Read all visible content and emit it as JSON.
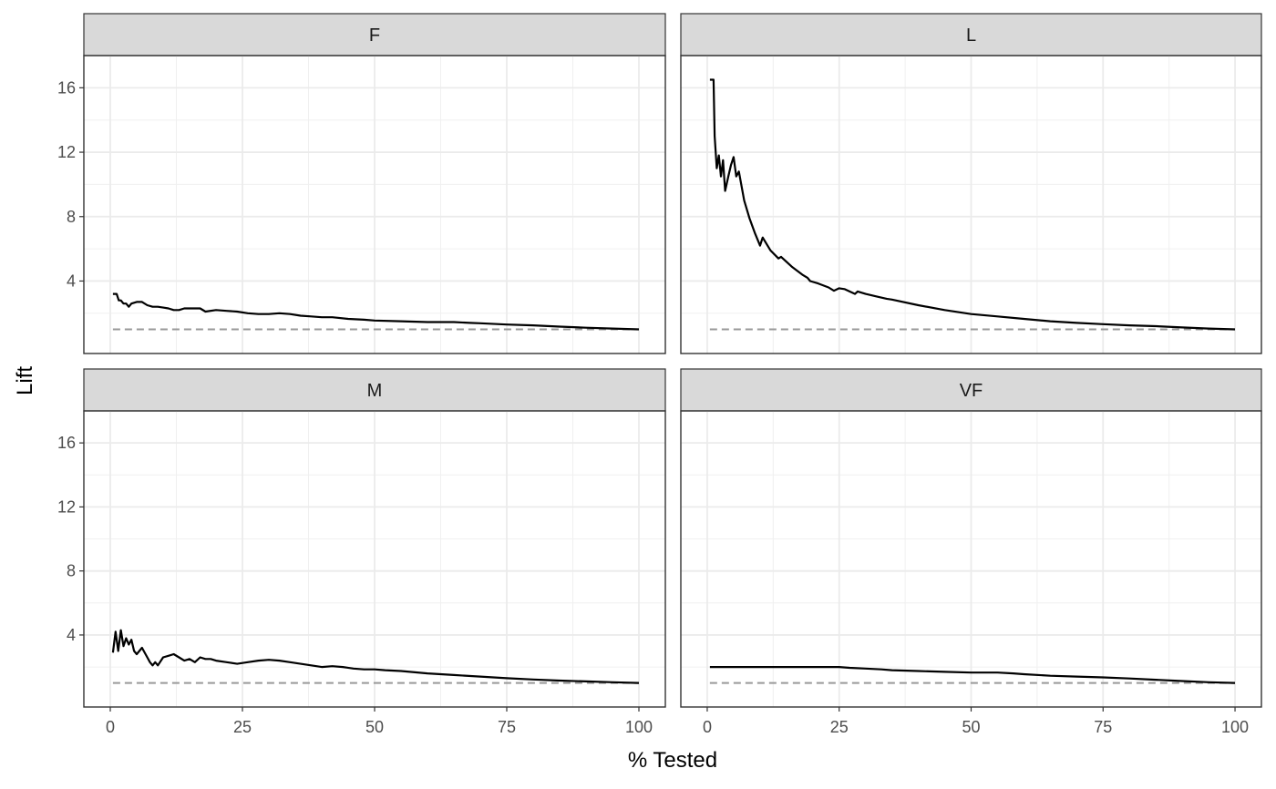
{
  "chart_data": {
    "type": "line",
    "layout": "facet-grid-2x2",
    "xlabel": "% Tested",
    "ylabel": "Lift",
    "xlim": [
      -5,
      105
    ],
    "ylim": [
      -0.5,
      18
    ],
    "x_ticks": [
      0,
      25,
      50,
      75,
      100
    ],
    "y_ticks": [
      4,
      8,
      12,
      16
    ],
    "grid": true,
    "baseline": {
      "y": 1,
      "style": "dashed",
      "color": "#999999"
    },
    "line_color": "#000000",
    "panels": [
      {
        "label": "F",
        "x": [
          0.5,
          1.2,
          1.6,
          2.0,
          2.5,
          3.0,
          3.5,
          4.0,
          5.0,
          6.0,
          7.0,
          8.0,
          9.0,
          10.0,
          11.0,
          12.0,
          13.0,
          14.0,
          15.0,
          16.0,
          17.0,
          18.0,
          20.0,
          22.0,
          24.0,
          26.0,
          28.0,
          30.0,
          32.0,
          34.0,
          36.0,
          38.0,
          40.0,
          42.0,
          45.0,
          48.0,
          50.0,
          55.0,
          60.0,
          65.0,
          68.0,
          70.0,
          75.0,
          80.0,
          85.0,
          90.0,
          95.0,
          100.0
        ],
        "y": [
          3.2,
          3.2,
          2.8,
          2.8,
          2.6,
          2.6,
          2.4,
          2.6,
          2.7,
          2.7,
          2.5,
          2.4,
          2.4,
          2.35,
          2.3,
          2.2,
          2.2,
          2.3,
          2.3,
          2.3,
          2.3,
          2.1,
          2.2,
          2.15,
          2.1,
          2.0,
          1.95,
          1.95,
          2.0,
          1.95,
          1.85,
          1.8,
          1.75,
          1.75,
          1.65,
          1.6,
          1.55,
          1.5,
          1.45,
          1.45,
          1.4,
          1.38,
          1.3,
          1.25,
          1.17,
          1.1,
          1.05,
          1.0
        ]
      },
      {
        "label": "L",
        "x": [
          0.5,
          1.2,
          1.4,
          1.8,
          2.2,
          2.6,
          3.0,
          3.4,
          4.0,
          4.5,
          5.0,
          5.5,
          6.0,
          7.0,
          8.0,
          9.0,
          10.0,
          10.5,
          12.0,
          13.5,
          14.0,
          16.0,
          18.0,
          19.0,
          19.5,
          21.0,
          23.0,
          24.0,
          25.0,
          26.0,
          28.0,
          28.5,
          30.0,
          32.0,
          34.0,
          35.0,
          40.0,
          45.0,
          50.0,
          55.0,
          60.0,
          65.0,
          70.0,
          75.0,
          80.0,
          85.0,
          90.0,
          95.0,
          100.0
        ],
        "y": [
          16.5,
          16.5,
          13.0,
          11.0,
          11.8,
          10.5,
          11.5,
          9.6,
          10.5,
          11.2,
          11.7,
          10.5,
          10.8,
          9.0,
          7.9,
          7.0,
          6.2,
          6.7,
          5.9,
          5.4,
          5.5,
          4.9,
          4.4,
          4.2,
          4.0,
          3.85,
          3.6,
          3.4,
          3.55,
          3.5,
          3.2,
          3.35,
          3.2,
          3.05,
          2.9,
          2.85,
          2.5,
          2.2,
          1.95,
          1.8,
          1.65,
          1.5,
          1.4,
          1.32,
          1.25,
          1.2,
          1.12,
          1.05,
          1.0
        ]
      },
      {
        "label": "M",
        "x": [
          0.5,
          1.0,
          1.5,
          2.0,
          2.5,
          3.0,
          3.5,
          4.0,
          4.5,
          5.0,
          6.0,
          7.0,
          7.5,
          8.0,
          8.5,
          9.0,
          10.0,
          11.0,
          12.0,
          13.0,
          14.0,
          15.0,
          16.0,
          17.0,
          18.0,
          19.0,
          20.0,
          22.0,
          24.0,
          26.0,
          28.0,
          30.0,
          32.0,
          34.0,
          36.0,
          38.0,
          40.0,
          42.0,
          44.0,
          46.0,
          48.0,
          50.0,
          52.0,
          55.0,
          60.0,
          65.0,
          70.0,
          75.0,
          80.0,
          85.0,
          90.0,
          95.0,
          100.0
        ],
        "y": [
          2.9,
          4.2,
          3.0,
          4.3,
          3.3,
          3.8,
          3.4,
          3.7,
          3.0,
          2.8,
          3.2,
          2.6,
          2.3,
          2.1,
          2.3,
          2.1,
          2.6,
          2.7,
          2.8,
          2.6,
          2.4,
          2.5,
          2.3,
          2.6,
          2.5,
          2.5,
          2.4,
          2.3,
          2.2,
          2.3,
          2.4,
          2.45,
          2.4,
          2.3,
          2.2,
          2.1,
          2.0,
          2.05,
          2.0,
          1.9,
          1.85,
          1.85,
          1.8,
          1.75,
          1.6,
          1.5,
          1.4,
          1.3,
          1.22,
          1.15,
          1.1,
          1.05,
          1.0
        ]
      },
      {
        "label": "VF",
        "x": [
          0.5,
          10.0,
          20.0,
          25.0,
          27.0,
          30.0,
          33.0,
          35.0,
          40.0,
          45.0,
          50.0,
          55.0,
          58.0,
          60.0,
          65.0,
          70.0,
          75.0,
          80.0,
          85.0,
          90.0,
          95.0,
          100.0
        ],
        "y": [
          2.0,
          2.0,
          2.0,
          2.0,
          1.95,
          1.9,
          1.85,
          1.8,
          1.75,
          1.7,
          1.65,
          1.65,
          1.6,
          1.55,
          1.45,
          1.4,
          1.35,
          1.28,
          1.2,
          1.12,
          1.05,
          1.0
        ]
      }
    ]
  }
}
